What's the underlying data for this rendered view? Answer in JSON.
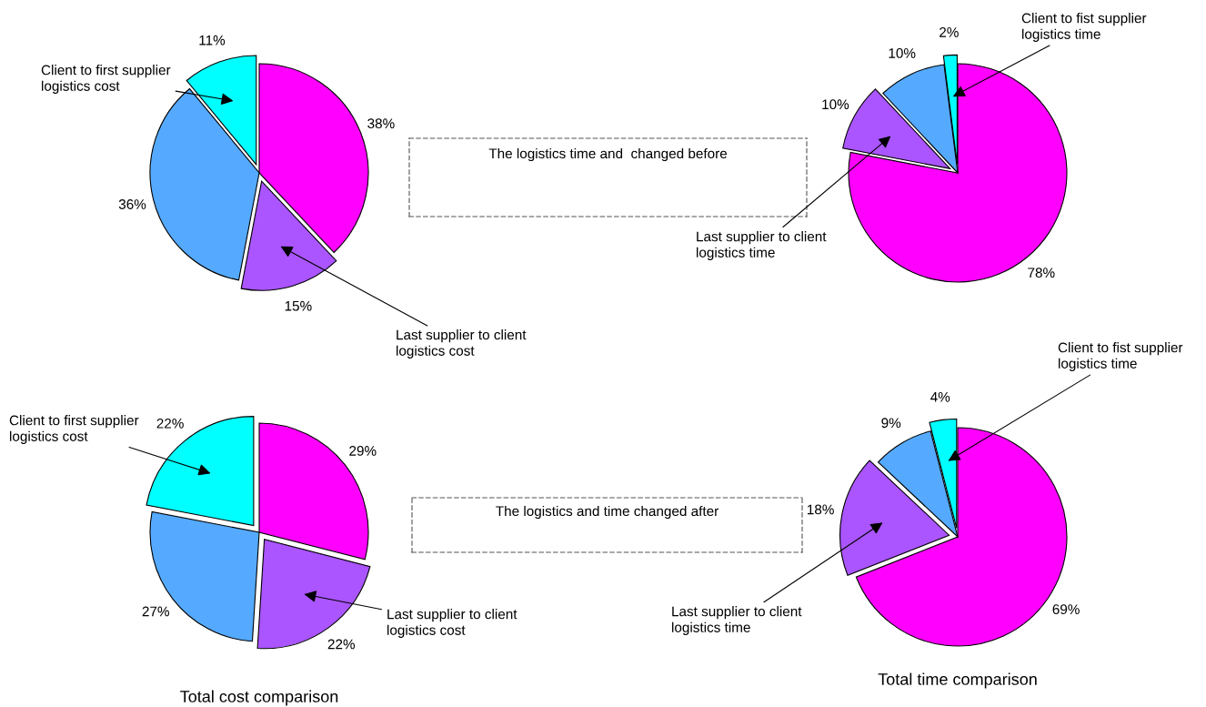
{
  "chart_data": [
    {
      "type": "pie",
      "categories": [
        null,
        "Last supplier to client\nlogistics cost",
        null,
        "Client to first supplier\nlogistics cost"
      ],
      "values": [
        38,
        15,
        36,
        11
      ],
      "colors": [
        "#ff00ff",
        "#aa55ff",
        "#55aaff",
        "#00ffff"
      ],
      "value_labels": [
        "38%",
        "15%",
        "36%",
        "11%"
      ]
    },
    {
      "type": "other",
      "annotations": [
        "The logistics time and  changed before"
      ]
    },
    {
      "type": "pie",
      "categories": [
        null,
        "Last supplier to client\nlogistics time",
        null,
        "Client to fist supplier\nlogistics time"
      ],
      "values": [
        78,
        10,
        10,
        2
      ],
      "colors": [
        "#ff00ff",
        "#aa55ff",
        "#55aaff",
        "#00ffff"
      ],
      "value_labels": [
        "78%",
        "10%",
        "10%",
        "2%"
      ]
    },
    {
      "type": "pie",
      "title": "Total cost comparison",
      "categories": [
        null,
        "Last supplier to client\nlogistics cost",
        null,
        "Client to first supplier\nlogistics cost"
      ],
      "values": [
        29,
        22,
        27,
        22
      ],
      "colors": [
        "#ff00ff",
        "#aa55ff",
        "#55aaff",
        "#00ffff"
      ],
      "value_labels": [
        "29%",
        "22%",
        "27%",
        "22%"
      ]
    },
    {
      "type": "other",
      "annotations": [
        "The logistics and time changed after"
      ]
    },
    {
      "type": "pie",
      "title": "Total time comparison",
      "categories": [
        null,
        "Last supplier to client\nlogistics time",
        null,
        "Client to fist supplier\nlogistics time"
      ],
      "values": [
        69,
        18,
        9,
        4
      ],
      "colors": [
        "#ff00ff",
        "#aa55ff",
        "#55aaff",
        "#00ffff"
      ],
      "value_labels": [
        "69%",
        "18%",
        "9%",
        "4%"
      ]
    }
  ]
}
